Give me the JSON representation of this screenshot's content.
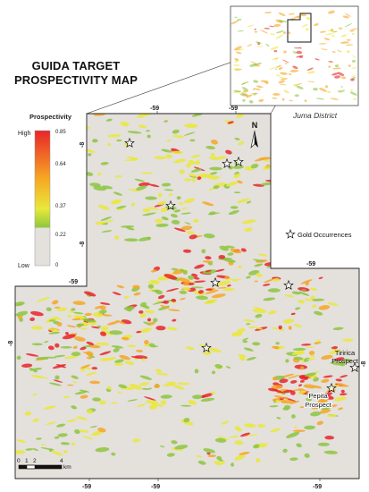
{
  "title": {
    "line1": "GUIDA TARGET",
    "line2": "PROSPECTIVITY MAP"
  },
  "inset": {
    "label": "Juma District"
  },
  "legend": {
    "title": "Prospectivity",
    "high_label": "High",
    "low_label": "Low",
    "values": [
      "0.85",
      "0.64",
      "0.37",
      "0.22",
      "0"
    ],
    "colors": {
      "high": "#e8252a",
      "upper_mid": "#f6a623",
      "mid": "#e9e83b",
      "lower_mid": "#8cc63f",
      "low": "#e4e0dc"
    }
  },
  "symbols": {
    "gold_occurrences_label": "Gold Occurrences",
    "marker_icon": "star-outline-icon"
  },
  "prospects": {
    "tiririca_line1": "Tiririca",
    "tiririca_line2": "Prospect",
    "pepita_line1": "Pepita",
    "pepita_line2": "Prospect"
  },
  "north_arrow": {
    "label": "N"
  },
  "scale_bar": {
    "ticks": [
      "0",
      "1",
      "2",
      "4"
    ],
    "unit": "km"
  },
  "grid_labels": {
    "top": [
      "-59",
      "-59"
    ],
    "bottom": [
      "-59",
      "-59",
      "-59"
    ],
    "mid_right": "-59",
    "mid_left": "-59",
    "left": [
      "-8",
      "-8"
    ],
    "mid_left_side": "-8",
    "right": "-8"
  }
}
